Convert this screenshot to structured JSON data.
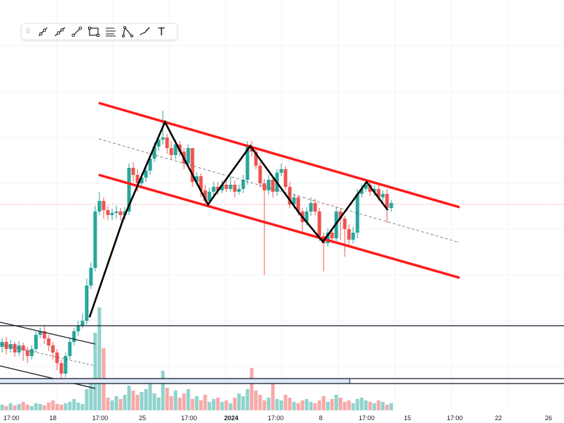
{
  "toolbar": {
    "tools": [
      {
        "name": "ray-tool-icon",
        "label": ""
      },
      {
        "name": "trend-line-icon",
        "label": ""
      },
      {
        "name": "line-icon",
        "label": ""
      },
      {
        "name": "rectangle-icon",
        "label": ""
      },
      {
        "name": "fib-levels-icon",
        "label": ""
      },
      {
        "name": "path-icon",
        "label": ""
      },
      {
        "name": "brush-icon",
        "label": ""
      },
      {
        "name": "text-tool-icon",
        "label": "T"
      }
    ]
  },
  "time_axis": {
    "labels": [
      "17:00",
      "18",
      "17:00",
      "25",
      "17:00",
      "2024",
      "17:00",
      "8",
      "17:00",
      "15",
      "17:00",
      "22",
      "26"
    ]
  },
  "colors": {
    "bull": "#26a69a",
    "bear": "#ef5350",
    "channel": "#ff1a1a",
    "zigzag": "#000000",
    "volume_bull": "#8fd3cd",
    "volume_bear": "#f7a9a7",
    "grid": "#f0f3fa",
    "highlight_band": "#dfe9fb"
  }
}
